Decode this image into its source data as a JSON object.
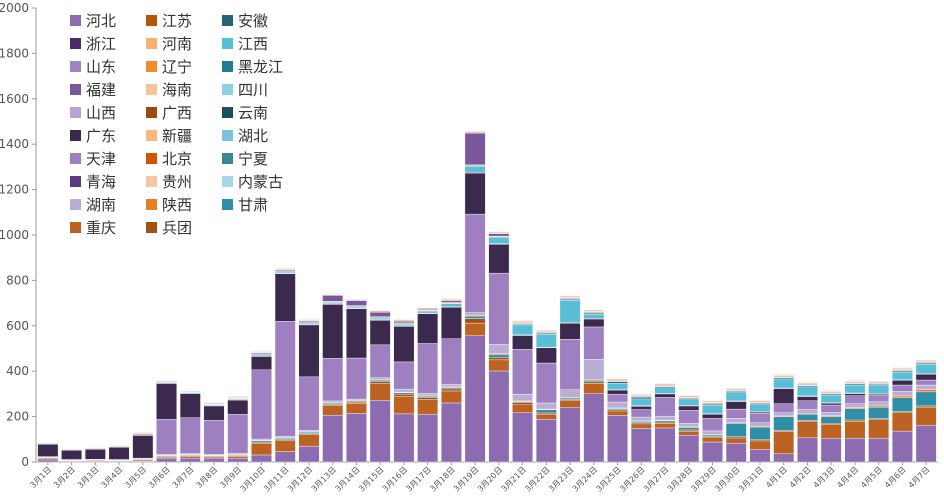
{
  "chart_data": {
    "type": "bar",
    "stacked": true,
    "title": "",
    "xlabel": "",
    "ylabel": "",
    "ylim": [
      0,
      2000
    ],
    "yticks": [
      0,
      200,
      400,
      600,
      800,
      1000,
      1200,
      1400,
      1600,
      1800,
      2000
    ],
    "grid": false,
    "legend": {
      "position": "top-left",
      "columns": 3
    },
    "categories": [
      "3月1日",
      "3月2日",
      "3月3日",
      "3月4日",
      "3月5日",
      "3月6日",
      "3月7日",
      "3月8日",
      "3月9日",
      "3月10日",
      "3月11日",
      "3月12日",
      "3月13日",
      "3月14日",
      "3月15日",
      "3月16日",
      "3月17日",
      "3月18日",
      "3月19日",
      "3月20日",
      "3月21日",
      "3月22日",
      "3月23日",
      "3月24日",
      "3月25日",
      "3月26日",
      "3月27日",
      "3月28日",
      "3月29日",
      "3月30日",
      "3月31日",
      "4月1日",
      "4月2日",
      "4月3日",
      "4月4日",
      "4月5日",
      "4月6日",
      "4月7日"
    ],
    "series": [
      {
        "name": "河北",
        "color": "#8c6bb1",
        "values": [
          9,
          3,
          3,
          3,
          4,
          14,
          17,
          14,
          17,
          31,
          46,
          70,
          206,
          214,
          272,
          212,
          210,
          260,
          556,
          401,
          217,
          188,
          239,
          301,
          205,
          148,
          150,
          118,
          88,
          83,
          55,
          36,
          107,
          105,
          105,
          105,
          136,
          162
        ]
      },
      {
        "name": "重庆",
        "color": "#bc6324",
        "values": [
          7,
          3,
          4,
          3,
          5,
          7,
          8,
          8,
          8,
          52,
          48,
          51,
          42,
          45,
          75,
          78,
          65,
          53,
          56,
          49,
          35,
          23,
          31,
          45,
          20,
          20,
          20,
          18,
          19,
          23,
          38,
          98,
          71,
          61,
          75,
          81,
          81,
          80
        ]
      },
      {
        "name": "兵团",
        "color": "#a34f10",
        "values": [
          0,
          0,
          0,
          0,
          0,
          2,
          2,
          2,
          2,
          4,
          4,
          4,
          5,
          4,
          7,
          9,
          9,
          9,
          20,
          9,
          10,
          5,
          5,
          7,
          5,
          5,
          6,
          5,
          5,
          5,
          5,
          5,
          5,
          5,
          5,
          5,
          5,
          5
        ]
      },
      {
        "name": "甘肃",
        "color": "#2e8fa6",
        "values": [
          3,
          2,
          2,
          2,
          3,
          4,
          4,
          4,
          4,
          6,
          6,
          6,
          6,
          5,
          7,
          6,
          6,
          6,
          11,
          13,
          4,
          14,
          7,
          7,
          6,
          6,
          6,
          11,
          7,
          59,
          56,
          60,
          28,
          29,
          50,
          50,
          61,
          62
        ]
      },
      {
        "name": "陕西",
        "color": "#e67e22",
        "values": [
          0,
          0,
          0,
          0,
          0,
          3,
          2,
          2,
          3,
          3,
          3,
          3,
          3,
          3,
          3,
          3,
          3,
          3,
          4,
          5,
          3,
          3,
          3,
          4,
          2,
          2,
          2,
          3,
          3,
          3,
          4,
          4,
          4,
          4,
          5,
          6,
          8,
          10
        ]
      },
      {
        "name": "湖南",
        "color": "#bbaed6",
        "values": [
          2,
          1,
          1,
          1,
          2,
          3,
          4,
          4,
          4,
          5,
          6,
          6,
          7,
          6,
          7,
          13,
          9,
          12,
          11,
          42,
          30,
          27,
          33,
          88,
          26,
          17,
          18,
          16,
          15,
          20,
          15,
          14,
          16,
          14,
          17,
          18,
          20,
          20
        ]
      },
      {
        "name": "天津",
        "color": "#9e7fc0",
        "values": [
          3,
          2,
          2,
          2,
          3,
          155,
          158,
          150,
          172,
          305,
          507,
          235,
          188,
          181,
          145,
          120,
          220,
          200,
          434,
          313,
          197,
          176,
          223,
          143,
          35,
          33,
          83,
          57,
          55,
          40,
          41,
          40,
          39,
          33,
          35,
          28,
          28,
          22
        ]
      },
      {
        "name": "广东",
        "color": "#3b2a4d",
        "values": [
          54,
          41,
          44,
          54,
          100,
          158,
          106,
          63,
          63,
          59,
          210,
          229,
          237,
          217,
          108,
          156,
          131,
          139,
          181,
          125,
          61,
          67,
          70,
          35,
          18,
          14,
          15,
          19,
          18,
          33,
          6,
          66,
          18,
          8,
          9,
          6,
          21,
          26
        ]
      },
      {
        "name": "青海",
        "color": "#5b3b80",
        "values": [
          0,
          0,
          0,
          0,
          0,
          0,
          0,
          0,
          0,
          0,
          2,
          3,
          3,
          3,
          3,
          3,
          3,
          3,
          4,
          5,
          3,
          3,
          3,
          3,
          3,
          3,
          3,
          3,
          3,
          3,
          3,
          3,
          3,
          3,
          3,
          3,
          3,
          3
        ]
      },
      {
        "name": "贵州",
        "color": "#f6c6a0",
        "values": [
          0,
          0,
          0,
          0,
          0,
          0,
          0,
          0,
          0,
          0,
          0,
          0,
          0,
          0,
          0,
          0,
          0,
          0,
          0,
          0,
          0,
          0,
          0,
          0,
          0,
          0,
          0,
          0,
          0,
          0,
          0,
          0,
          0,
          0,
          0,
          0,
          0,
          0
        ]
      },
      {
        "name": "北京",
        "color": "#d35400",
        "values": [
          0,
          0,
          0,
          0,
          0,
          0,
          0,
          0,
          0,
          0,
          0,
          0,
          0,
          0,
          0,
          0,
          0,
          0,
          0,
          0,
          0,
          0,
          0,
          0,
          0,
          0,
          0,
          0,
          0,
          0,
          0,
          0,
          0,
          0,
          0,
          0,
          0,
          0
        ]
      },
      {
        "name": "山西",
        "color": "#b9a2d8",
        "values": [
          0,
          0,
          0,
          0,
          0,
          0,
          0,
          0,
          0,
          0,
          0,
          0,
          0,
          0,
          0,
          0,
          0,
          0,
          0,
          0,
          0,
          0,
          0,
          0,
          0,
          0,
          0,
          0,
          0,
          0,
          0,
          0,
          0,
          0,
          0,
          0,
          0,
          0
        ]
      },
      {
        "name": "江西",
        "color": "#58c0d6",
        "values": [
          2,
          2,
          2,
          2,
          3,
          4,
          4,
          4,
          4,
          6,
          5,
          5,
          5,
          5,
          7,
          7,
          7,
          12,
          26,
          27,
          44,
          57,
          99,
          18,
          27,
          30,
          24,
          25,
          37,
          37,
          30,
          40,
          40,
          33,
          35,
          35,
          33,
          40
        ]
      },
      {
        "name": "安徽",
        "color": "#2a6378",
        "values": [
          0,
          0,
          0,
          0,
          0,
          2,
          2,
          2,
          2,
          3,
          3,
          3,
          3,
          3,
          3,
          3,
          3,
          3,
          3,
          3,
          4,
          4,
          4,
          5,
          7,
          7,
          5,
          5,
          5,
          5,
          5,
          5,
          5,
          5,
          5,
          5,
          5,
          5
        ]
      },
      {
        "name": "辽宁",
        "color": "#f28c2a",
        "values": [
          0,
          0,
          0,
          0,
          0,
          2,
          2,
          2,
          2,
          3,
          3,
          3,
          3,
          3,
          3,
          3,
          3,
          3,
          3,
          3,
          3,
          3,
          3,
          3,
          3,
          3,
          3,
          3,
          3,
          3,
          3,
          3,
          3,
          3,
          3,
          3,
          3,
          3
        ]
      },
      {
        "name": "福建",
        "color": "#7a579c",
        "values": [
          3,
          2,
          3,
          3,
          4,
          3,
          3,
          3,
          3,
          4,
          4,
          4,
          26,
          22,
          20,
          7,
          4,
          8,
          140,
          11,
          3,
          3,
          3,
          3,
          3,
          3,
          3,
          3,
          3,
          3,
          3,
          3,
          3,
          3,
          3,
          3,
          3,
          3
        ]
      },
      {
        "name": "山东",
        "color": "#9d86c2",
        "values": [
          0,
          0,
          0,
          0,
          0,
          2,
          2,
          2,
          2,
          3,
          3,
          3,
          3,
          3,
          3,
          3,
          3,
          3,
          3,
          3,
          3,
          3,
          3,
          3,
          3,
          3,
          3,
          3,
          3,
          3,
          3,
          3,
          3,
          3,
          3,
          3,
          3,
          3
        ]
      },
      {
        "name": "浙江",
        "color": "#4a2d66",
        "values": [
          0,
          0,
          0,
          0,
          0,
          0,
          0,
          0,
          0,
          0,
          0,
          0,
          0,
          0,
          0,
          0,
          0,
          0,
          0,
          0,
          0,
          0,
          0,
          0,
          0,
          0,
          0,
          0,
          0,
          0,
          0,
          0,
          0,
          0,
          0,
          0,
          0,
          0
        ]
      },
      {
        "name": "江苏",
        "color": "#b35806",
        "values": [
          2,
          2,
          2,
          2,
          3,
          2,
          2,
          2,
          2,
          2,
          2,
          2,
          2,
          2,
          3,
          3,
          3,
          3,
          3,
          3,
          3,
          3,
          3,
          3,
          3,
          3,
          3,
          3,
          3,
          3,
          3,
          3,
          3,
          3,
          3,
          3,
          3,
          3
        ]
      },
      {
        "name": "河南",
        "color": "#f9b072",
        "values": [
          0,
          0,
          0,
          0,
          0,
          0,
          0,
          0,
          0,
          0,
          0,
          0,
          0,
          0,
          0,
          0,
          0,
          0,
          0,
          0,
          0,
          0,
          0,
          0,
          0,
          0,
          0,
          0,
          0,
          0,
          0,
          0,
          0,
          0,
          0,
          0,
          0,
          0
        ]
      },
      {
        "name": "海南",
        "color": "#f5c499",
        "values": [
          2,
          2,
          2,
          2,
          3,
          2,
          2,
          2,
          3,
          3,
          3,
          3,
          3,
          3,
          3,
          3,
          3,
          3,
          3,
          3,
          3,
          3,
          3,
          3,
          3,
          3,
          3,
          3,
          3,
          3,
          3,
          3,
          3,
          3,
          3,
          3,
          3,
          3
        ]
      },
      {
        "name": "广西",
        "color": "#9c4a0e",
        "values": [
          0,
          0,
          0,
          0,
          0,
          0,
          0,
          0,
          0,
          0,
          0,
          0,
          0,
          0,
          0,
          0,
          0,
          0,
          0,
          0,
          0,
          0,
          0,
          0,
          0,
          0,
          0,
          0,
          0,
          0,
          0,
          0,
          0,
          0,
          0,
          0,
          0,
          0
        ]
      },
      {
        "name": "新疆",
        "color": "#f7b980",
        "values": [
          0,
          0,
          0,
          0,
          0,
          0,
          0,
          0,
          0,
          0,
          0,
          0,
          0,
          0,
          0,
          0,
          0,
          0,
          0,
          0,
          0,
          0,
          0,
          0,
          0,
          0,
          0,
          0,
          0,
          0,
          0,
          0,
          0,
          0,
          0,
          0,
          0,
          0
        ]
      },
      {
        "name": "黑龙江",
        "color": "#1f7f91",
        "values": [
          0,
          0,
          0,
          0,
          0,
          0,
          0,
          0,
          0,
          0,
          0,
          0,
          0,
          0,
          0,
          0,
          0,
          0,
          0,
          0,
          0,
          0,
          0,
          0,
          0,
          0,
          0,
          0,
          0,
          0,
          0,
          0,
          0,
          0,
          0,
          0,
          0,
          0
        ]
      },
      {
        "name": "四川",
        "color": "#8ecfe0",
        "values": [
          0,
          0,
          0,
          0,
          0,
          0,
          0,
          0,
          0,
          0,
          0,
          0,
          0,
          0,
          0,
          0,
          0,
          0,
          0,
          0,
          0,
          0,
          0,
          0,
          0,
          0,
          0,
          0,
          0,
          0,
          0,
          0,
          0,
          0,
          0,
          0,
          0,
          0
        ]
      },
      {
        "name": "云南",
        "color": "#1a4f5e",
        "values": [
          0,
          0,
          0,
          0,
          0,
          0,
          0,
          0,
          0,
          0,
          0,
          0,
          0,
          0,
          0,
          0,
          0,
          0,
          0,
          0,
          0,
          0,
          0,
          0,
          0,
          0,
          0,
          0,
          0,
          0,
          0,
          0,
          0,
          0,
          0,
          0,
          0,
          0
        ]
      },
      {
        "name": "湖北",
        "color": "#7cc4d9",
        "values": [
          0,
          0,
          0,
          0,
          0,
          0,
          0,
          0,
          0,
          0,
          0,
          0,
          0,
          0,
          0,
          0,
          0,
          0,
          0,
          0,
          0,
          0,
          0,
          0,
          0,
          0,
          0,
          0,
          0,
          0,
          0,
          0,
          0,
          0,
          0,
          0,
          0,
          0
        ]
      },
      {
        "name": "宁夏",
        "color": "#3a8794",
        "values": [
          0,
          0,
          0,
          0,
          0,
          0,
          0,
          0,
          0,
          0,
          0,
          0,
          0,
          0,
          0,
          0,
          0,
          0,
          0,
          0,
          0,
          0,
          0,
          0,
          0,
          0,
          0,
          0,
          0,
          0,
          0,
          0,
          0,
          0,
          0,
          0,
          0,
          0
        ]
      },
      {
        "name": "内蒙古",
        "color": "#a6d7e6",
        "values": [
          0,
          0,
          0,
          0,
          0,
          0,
          0,
          0,
          0,
          0,
          0,
          0,
          0,
          0,
          0,
          0,
          0,
          0,
          0,
          0,
          0,
          0,
          0,
          0,
          0,
          0,
          0,
          0,
          0,
          0,
          0,
          0,
          0,
          0,
          0,
          0,
          0,
          0
        ]
      }
    ],
    "legend_order": [
      [
        "河北",
        "江苏",
        "安徽"
      ],
      [
        "浙江",
        "河南",
        "江西"
      ],
      [
        "山东",
        "辽宁",
        "黑龙江"
      ],
      [
        "福建",
        "海南",
        "四川"
      ],
      [
        "山西",
        "广西",
        "云南"
      ],
      [
        "广东",
        "新疆",
        "湖北"
      ],
      [
        "天津",
        "北京",
        "宁夏"
      ],
      [
        "青海",
        "贵州",
        "内蒙古"
      ],
      [
        "湖南",
        "陕西",
        "甘肃"
      ],
      [
        "重庆",
        "兵团"
      ]
    ]
  }
}
